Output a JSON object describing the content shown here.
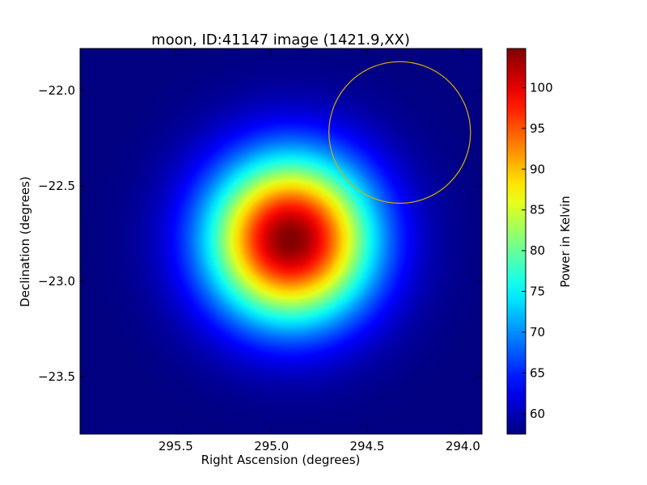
{
  "chart_data": {
    "type": "heatmap",
    "title": "moon, ID:41147 image (1421.9,XX)",
    "xlabel": "Right Ascension (degrees)",
    "ylabel": "Declination (degrees)",
    "colorbar_label": "Power in Kelvin",
    "xlim": [
      296.0,
      293.9
    ],
    "ylim": [
      -23.8,
      -21.78
    ],
    "x_ticks": [
      295.5,
      295.0,
      294.5,
      294.0
    ],
    "x_tick_labels": [
      "295.5",
      "295.0",
      "294.5",
      "294.0"
    ],
    "y_ticks": [
      -22.0,
      -22.5,
      -23.0,
      -23.5
    ],
    "y_tick_labels": [
      "−22.0",
      "−22.5",
      "−23.0",
      "−23.5"
    ],
    "colorbar_range": [
      57.5,
      104.8
    ],
    "colorbar_ticks": [
      60,
      65,
      70,
      75,
      80,
      85,
      90,
      95,
      100
    ],
    "colorbar_tick_labels": [
      "60",
      "65",
      "70",
      "75",
      "80",
      "85",
      "90",
      "95",
      "100"
    ],
    "colormap": "jet",
    "source": {
      "center_ra": 294.9,
      "center_dec": -22.78,
      "peak_kelvin": 104.8,
      "background_kelvin": 57.5,
      "fwhm_deg": 0.71
    },
    "circle": {
      "center_ra": 294.33,
      "center_dec": -22.22,
      "radius_deg": 0.37,
      "color": "#d4b000"
    }
  }
}
